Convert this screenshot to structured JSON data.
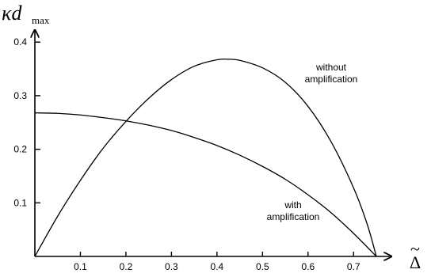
{
  "chart_data": {
    "type": "line",
    "xlabel_symbol": "Δ",
    "xlabel_accent": "~",
    "ylabel_main": "κd",
    "ylabel_sub": "max",
    "xlim": [
      0,
      0.75
    ],
    "ylim": [
      0,
      0.4
    ],
    "x_ticks": [
      "0.1",
      "0.2",
      "0.3",
      "0.4",
      "0.5",
      "0.6",
      "0.7"
    ],
    "x_tick_values": [
      0.1,
      0.2,
      0.3,
      0.4,
      0.5,
      0.6,
      0.7
    ],
    "y_ticks": [
      "0.1",
      "0.2",
      "0.3",
      "0.4"
    ],
    "y_tick_values": [
      0.1,
      0.2,
      0.3,
      0.4
    ],
    "grid": false,
    "legend": "none",
    "series": [
      {
        "annotation_lines": [
          "without",
          "amplification"
        ],
        "x": [
          0,
          0.05,
          0.1,
          0.15,
          0.2,
          0.25,
          0.3,
          0.35,
          0.4,
          0.425,
          0.45,
          0.5,
          0.55,
          0.6,
          0.65,
          0.7,
          0.73,
          0.75
        ],
        "y": [
          0,
          0.075,
          0.142,
          0.202,
          0.252,
          0.295,
          0.33,
          0.355,
          0.367,
          0.368,
          0.366,
          0.352,
          0.325,
          0.28,
          0.215,
          0.128,
          0.06,
          0.0
        ]
      },
      {
        "annotation_lines": [
          "with",
          "amplification"
        ],
        "x": [
          0,
          0.05,
          0.1,
          0.15,
          0.2,
          0.25,
          0.3,
          0.35,
          0.4,
          0.45,
          0.5,
          0.55,
          0.6,
          0.65,
          0.7,
          0.75
        ],
        "y": [
          0.268,
          0.267,
          0.264,
          0.259,
          0.253,
          0.245,
          0.235,
          0.222,
          0.207,
          0.189,
          0.168,
          0.144,
          0.115,
          0.082,
          0.043,
          0.0
        ]
      }
    ]
  }
}
